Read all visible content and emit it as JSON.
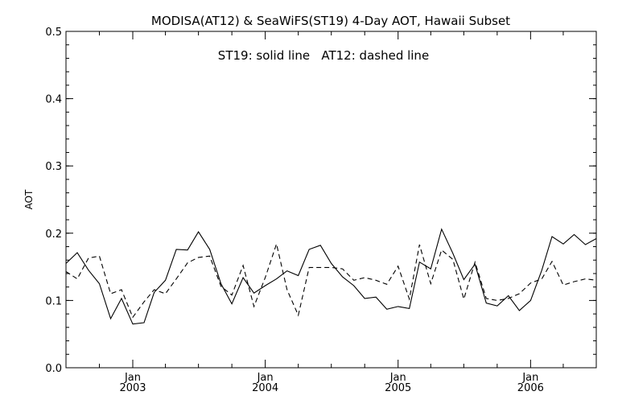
{
  "chart_data": {
    "type": "line",
    "title": "MODISA(AT12) & SeaWiFS(ST19) 4-Day AOT, Hawaii Subset",
    "annotation": "ST19: solid line   AT12: dashed line",
    "ylabel": "AOT",
    "xlabel": "",
    "ylim": [
      0.0,
      0.5
    ],
    "xlim": [
      "2002-07-01",
      "2006-07-01"
    ],
    "yticks": [
      "0.0",
      "0.1",
      "0.2",
      "0.3",
      "0.4",
      "0.5"
    ],
    "xticks": [
      {
        "date": "2003-01-01",
        "month": "Jan",
        "year": "2003"
      },
      {
        "date": "2004-01-01",
        "month": "Jan",
        "year": "2004"
      },
      {
        "date": "2005-01-01",
        "month": "Jan",
        "year": "2005"
      },
      {
        "date": "2006-01-01",
        "month": "Jan",
        "year": "2006"
      }
    ],
    "minor_ticks": [
      "2002-10-01",
      "2003-04-01",
      "2003-07-01",
      "2003-10-01",
      "2004-04-01",
      "2004-07-01",
      "2004-10-01",
      "2005-04-01",
      "2005-07-01",
      "2005-10-01",
      "2006-04-01"
    ],
    "grid": false,
    "series": [
      {
        "name": "ST19",
        "style": "solid",
        "x": [
          "2002-07-01",
          "2002-08-01",
          "2002-09-01",
          "2002-10-01",
          "2002-11-01",
          "2002-12-01",
          "2003-01-01",
          "2003-02-01",
          "2003-03-01",
          "2003-04-01",
          "2003-05-01",
          "2003-06-01",
          "2003-07-01",
          "2003-08-01",
          "2003-09-01",
          "2003-10-01",
          "2003-11-01",
          "2003-12-01",
          "2004-01-01",
          "2004-02-01",
          "2004-03-01",
          "2004-04-01",
          "2004-05-01",
          "2004-06-01",
          "2004-07-01",
          "2004-08-01",
          "2004-09-01",
          "2004-10-01",
          "2004-11-01",
          "2004-12-01",
          "2005-01-01",
          "2005-02-01",
          "2005-03-01",
          "2005-04-01",
          "2005-05-01",
          "2005-06-01",
          "2005-07-01",
          "2005-08-01",
          "2005-09-01",
          "2005-10-01",
          "2005-11-01",
          "2005-12-01",
          "2006-01-01",
          "2006-02-01",
          "2006-03-01",
          "2006-04-01",
          "2006-05-01",
          "2006-06-01",
          "2006-07-01"
        ],
        "values": [
          0.155,
          0.171,
          0.145,
          0.125,
          0.073,
          0.103,
          0.065,
          0.067,
          0.112,
          0.13,
          0.176,
          0.175,
          0.202,
          0.176,
          0.125,
          0.095,
          0.134,
          0.111,
          0.122,
          0.132,
          0.144,
          0.137,
          0.176,
          0.182,
          0.155,
          0.135,
          0.122,
          0.103,
          0.105,
          0.087,
          0.091,
          0.088,
          0.157,
          0.147,
          0.206,
          0.17,
          0.131,
          0.154,
          0.096,
          0.092,
          0.107,
          0.085,
          0.1,
          0.145,
          0.195,
          0.184,
          0.198,
          0.183,
          0.192
        ]
      },
      {
        "name": "AT12",
        "style": "dashed",
        "x": [
          "2002-07-01",
          "2002-08-01",
          "2002-09-01",
          "2002-10-01",
          "2002-11-01",
          "2002-12-01",
          "2003-01-01",
          "2003-02-01",
          "2003-03-01",
          "2003-04-01",
          "2003-05-01",
          "2003-06-01",
          "2003-07-01",
          "2003-08-01",
          "2003-09-01",
          "2003-10-01",
          "2003-11-01",
          "2003-12-01",
          "2004-01-01",
          "2004-02-01",
          "2004-03-01",
          "2004-04-01",
          "2004-05-01",
          "2004-06-01",
          "2004-07-01",
          "2004-08-01",
          "2004-09-01",
          "2004-10-01",
          "2004-11-01",
          "2004-12-01",
          "2005-01-01",
          "2005-02-01",
          "2005-03-01",
          "2005-04-01",
          "2005-05-01",
          "2005-06-01",
          "2005-07-01",
          "2005-08-01",
          "2005-09-01",
          "2005-10-01",
          "2005-11-01",
          "2005-12-01",
          "2006-01-01",
          "2006-02-01",
          "2006-03-01",
          "2006-04-01",
          "2006-05-01",
          "2006-06-01",
          "2006-07-01"
        ],
        "values": [
          0.143,
          0.132,
          0.163,
          0.166,
          0.11,
          0.116,
          0.075,
          0.098,
          0.116,
          0.11,
          0.132,
          0.156,
          0.164,
          0.166,
          0.121,
          0.108,
          0.152,
          0.091,
          0.134,
          0.184,
          0.116,
          0.078,
          0.149,
          0.149,
          0.149,
          0.147,
          0.13,
          0.134,
          0.13,
          0.124,
          0.151,
          0.102,
          0.183,
          0.125,
          0.175,
          0.161,
          0.102,
          0.157,
          0.103,
          0.1,
          0.103,
          0.11,
          0.126,
          0.132,
          0.158,
          0.123,
          0.128,
          0.132,
          0.13
        ]
      }
    ]
  }
}
